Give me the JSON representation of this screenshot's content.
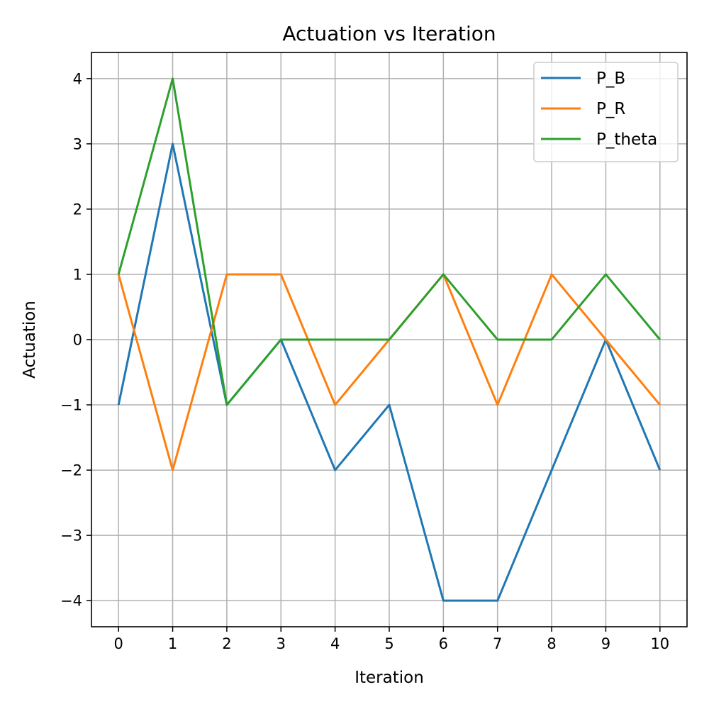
{
  "chart_data": {
    "type": "line",
    "title": "Actuation vs Iteration",
    "xlabel": "Iteration",
    "ylabel": "Actuation",
    "x": [
      0,
      1,
      2,
      3,
      4,
      5,
      6,
      7,
      8,
      9,
      10
    ],
    "xlim": [
      -0.5,
      10.5
    ],
    "ylim": [
      -4.4,
      4.4
    ],
    "xticks": [
      0,
      1,
      2,
      3,
      4,
      5,
      6,
      7,
      8,
      9,
      10
    ],
    "xtick_labels": [
      "0",
      "1",
      "2",
      "3",
      "4",
      "5",
      "6",
      "7",
      "8",
      "9",
      "10"
    ],
    "yticks": [
      -4,
      -3,
      -2,
      -1,
      0,
      1,
      2,
      3,
      4
    ],
    "ytick_labels": [
      "−4",
      "−3",
      "−2",
      "−1",
      "0",
      "1",
      "2",
      "3",
      "4"
    ],
    "grid": true,
    "legend_position": "top-right",
    "series": [
      {
        "name": "P_B",
        "color": "#1f77b4",
        "values": [
          -1,
          3,
          -1,
          0,
          -2,
          -1,
          -4,
          -4,
          -2,
          0,
          -2
        ]
      },
      {
        "name": "P_R",
        "color": "#ff7f0e",
        "values": [
          1,
          -2,
          1,
          1,
          -1,
          0,
          1,
          -1,
          1,
          0,
          -1
        ]
      },
      {
        "name": "P_theta",
        "color": "#2ca02c",
        "values": [
          1,
          4,
          -1,
          0,
          0,
          0,
          1,
          0,
          0,
          1,
          0
        ]
      }
    ]
  }
}
